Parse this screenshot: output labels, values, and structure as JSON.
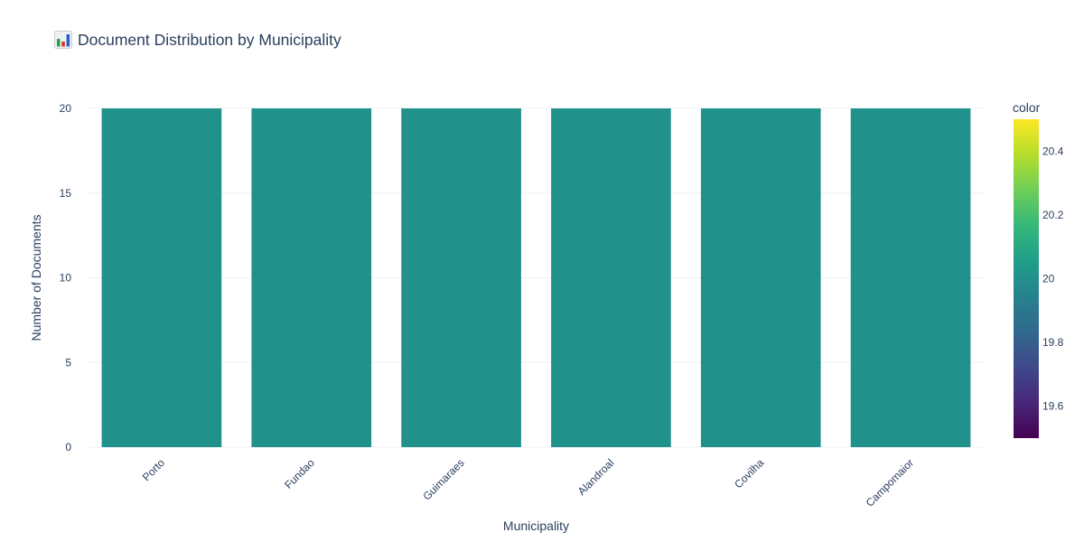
{
  "chart_data": {
    "type": "bar",
    "title": "Document Distribution by Municipality",
    "title_icon": "bar-chart-emoji-icon",
    "categories": [
      "Porto",
      "Fundao",
      "Guimaraes",
      "Alandroal",
      "Covilha",
      "Campomaior"
    ],
    "values": [
      20,
      20,
      20,
      20,
      20,
      20
    ],
    "xlabel": "Municipality",
    "ylabel": "Number of Documents",
    "ylim": [
      0,
      20
    ],
    "yticks": [
      0,
      5,
      10,
      15,
      20
    ],
    "grid": true,
    "bar_color": "#21918c",
    "colorbar": {
      "title": "color",
      "range": [
        19.5,
        20.5
      ],
      "ticks": [
        19.6,
        19.8,
        20,
        20.2,
        20.4
      ],
      "tick_labels": [
        "19.6",
        "19.8",
        "20",
        "20.2",
        "20.4"
      ],
      "colorscale": "Viridis",
      "stops": [
        "#440154",
        "#482878",
        "#3e4989",
        "#31688e",
        "#26828e",
        "#1f9e89",
        "#35b779",
        "#6ece58",
        "#b5de2b",
        "#fde725"
      ]
    }
  }
}
